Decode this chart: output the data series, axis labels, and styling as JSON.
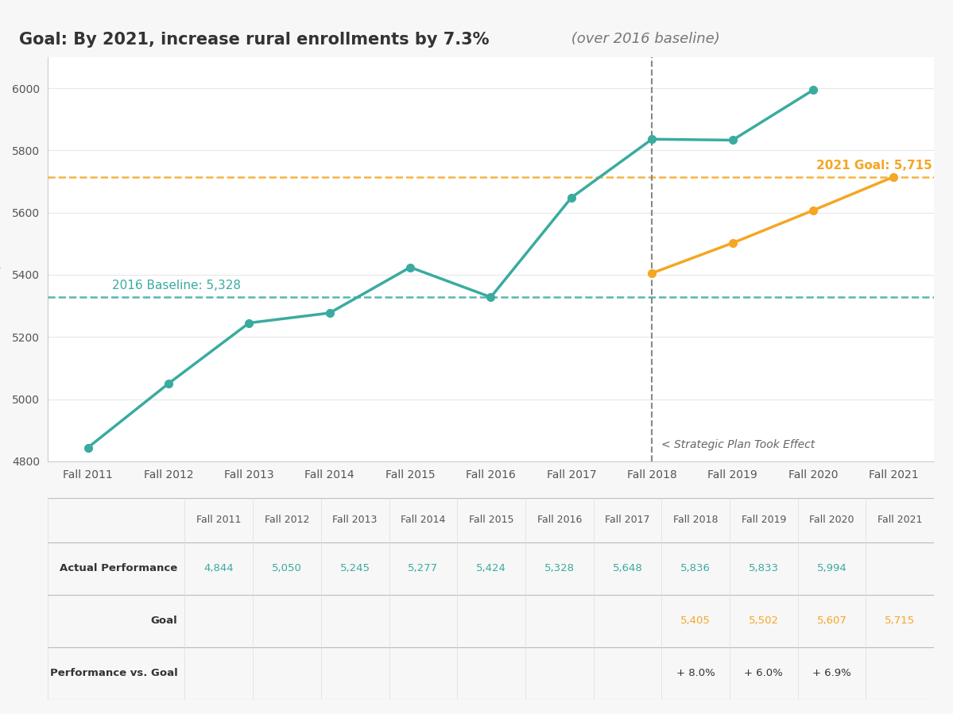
{
  "title_bold": "Goal: By 2021, increase rural enrollments by 7.3%",
  "title_italic": " (over 2016 baseline)",
  "years": [
    "Fall 2011",
    "Fall 2012",
    "Fall 2013",
    "Fall 2014",
    "Fall 2015",
    "Fall 2016",
    "Fall 2017",
    "Fall 2018",
    "Fall 2019",
    "Fall 2020",
    "Fall 2021"
  ],
  "actual_values": [
    4844,
    5050,
    5245,
    5277,
    5424,
    5328,
    5648,
    5836,
    5833,
    5994,
    null
  ],
  "goal_values": [
    null,
    null,
    null,
    null,
    null,
    null,
    null,
    5405,
    5502,
    5607,
    5715
  ],
  "baseline_value": 5328,
  "goal_line_value": 5715,
  "vertical_line_index": 7,
  "teal_color": "#3aaba0",
  "orange_color": "#f5a623",
  "ylabel": "Rural\nEnrollments",
  "ylim_min": 4800,
  "ylim_max": 6100,
  "yticks": [
    4800,
    5000,
    5200,
    5400,
    5600,
    5800,
    6000
  ],
  "strategic_plan_text": "< Strategic Plan Took Effect",
  "baseline_label": "2016 Baseline: 5,328",
  "goal_label": "2021 Goal: 5,715",
  "table_rows": [
    "Actual Performance",
    "Goal",
    "Performance vs. Goal"
  ],
  "actual_row": [
    "4,844",
    "5,050",
    "5,245",
    "5,277",
    "5,424",
    "5,328",
    "5,648",
    "5,836",
    "5,833",
    "5,994",
    ""
  ],
  "goal_row": [
    "",
    "",
    "",
    "",
    "",
    "",
    "",
    "5,405",
    "5,502",
    "5,607",
    "5,715"
  ],
  "perf_vs_goal_row": [
    "",
    "",
    "",
    "",
    "",
    "",
    "",
    "+ 8.0%",
    "+ 6.0%",
    "+ 6.9%",
    ""
  ],
  "background_color": "#f7f7f7",
  "plot_bg_color": "#ffffff"
}
